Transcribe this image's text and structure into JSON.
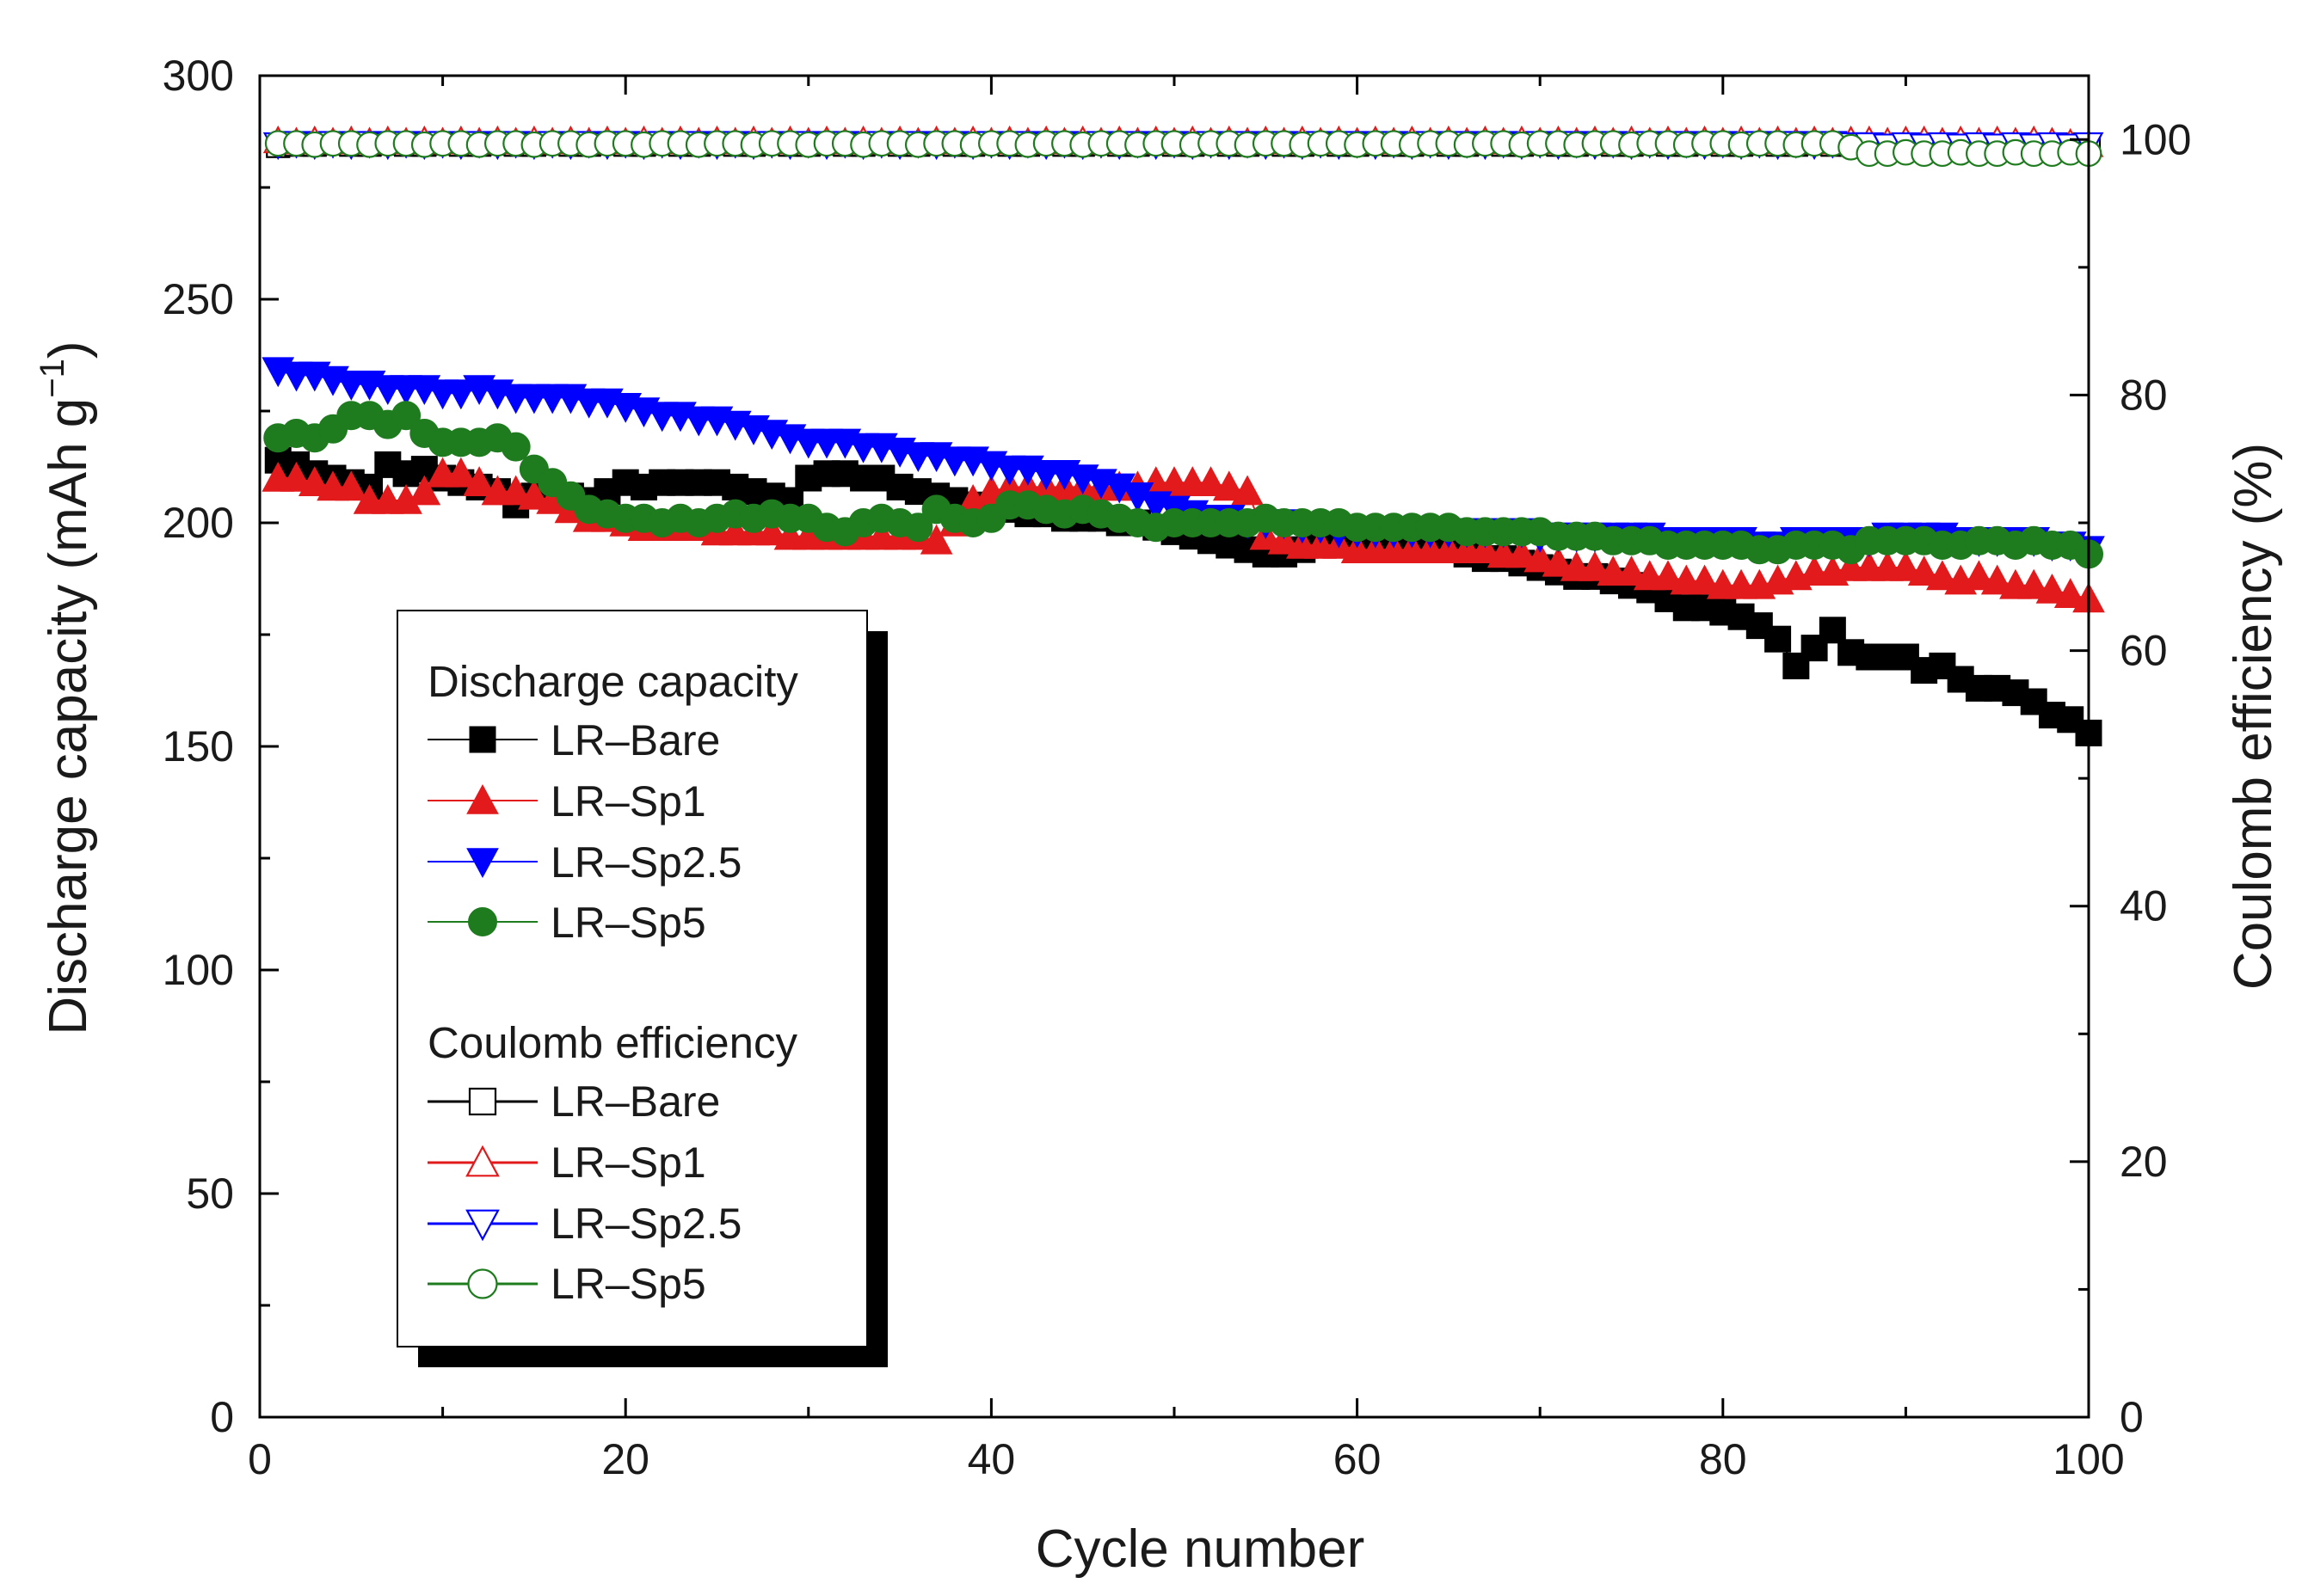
{
  "chart_data": {
    "type": "scatter",
    "title": "",
    "xlabel": "Cycle number",
    "ylabel_main": "Discharge capacity (mAh g",
    "ylabel_sup": "−1",
    "ylabel_close": ")",
    "y2label": "Coulomb efficiency (%)",
    "xlim": [
      0,
      100
    ],
    "ylim": [
      0,
      300
    ],
    "y2lim": [
      0,
      105
    ],
    "x_ticks": [
      "0",
      "20",
      "40",
      "60",
      "80",
      "100"
    ],
    "y_ticks": [
      "0",
      "50",
      "100",
      "150",
      "200",
      "250",
      "300"
    ],
    "y2_ticks": [
      "0",
      "20",
      "40",
      "60",
      "80",
      "100"
    ],
    "x": [
      1,
      2,
      3,
      4,
      5,
      6,
      7,
      8,
      9,
      10,
      11,
      12,
      13,
      14,
      15,
      16,
      17,
      18,
      19,
      20,
      21,
      22,
      23,
      24,
      25,
      26,
      27,
      28,
      29,
      30,
      31,
      32,
      33,
      34,
      35,
      36,
      37,
      38,
      39,
      40,
      41,
      42,
      43,
      44,
      45,
      46,
      47,
      48,
      49,
      50,
      51,
      52,
      53,
      54,
      55,
      56,
      57,
      58,
      59,
      60,
      61,
      62,
      63,
      64,
      65,
      66,
      67,
      68,
      69,
      70,
      71,
      72,
      73,
      74,
      75,
      76,
      77,
      78,
      79,
      80,
      81,
      82,
      83,
      84,
      85,
      86,
      87,
      88,
      89,
      90,
      91,
      92,
      93,
      94,
      95,
      96,
      97,
      98,
      99,
      100
    ],
    "discharge_series": [
      {
        "name": "LR–Bare",
        "color": "#000000",
        "marker": "square-filled",
        "values": [
          214,
          213,
          211,
          210,
          209,
          208,
          213,
          211,
          212,
          210,
          209,
          208,
          207,
          204,
          206,
          205,
          206,
          205,
          207,
          209,
          208,
          209,
          209,
          209,
          209,
          208,
          207,
          206,
          205,
          210,
          211,
          211,
          210,
          210,
          208,
          207,
          206,
          205,
          204,
          203,
          203,
          202,
          202,
          201,
          201,
          201,
          200,
          200,
          199,
          198,
          197,
          196,
          195,
          194,
          193,
          193,
          194,
          195,
          196,
          196,
          195,
          195,
          195,
          194,
          194,
          193,
          192,
          192,
          191,
          190,
          189,
          188,
          188,
          187,
          186,
          185,
          183,
          181,
          181,
          180,
          179,
          177,
          174,
          168,
          172,
          176,
          171,
          170,
          170,
          170,
          167,
          168,
          165,
          163,
          163,
          162,
          160,
          157,
          156,
          153
        ]
      },
      {
        "name": "LR–Sp1",
        "color": "#e31a1c",
        "marker": "triangle-up-filled",
        "values": [
          210,
          210,
          209,
          208,
          208,
          205,
          205,
          205,
          207,
          211,
          211,
          209,
          207,
          207,
          206,
          205,
          203,
          201,
          201,
          200,
          199,
          199,
          199,
          199,
          198,
          198,
          198,
          198,
          197,
          197,
          197,
          197,
          197,
          197,
          197,
          197,
          196,
          200,
          205,
          207,
          208,
          208,
          208,
          208,
          208,
          208,
          208,
          208,
          209,
          209,
          209,
          209,
          208,
          207,
          197,
          196,
          195,
          195,
          195,
          194,
          194,
          194,
          194,
          194,
          194,
          194,
          194,
          193,
          193,
          192,
          191,
          190,
          190,
          189,
          189,
          188,
          188,
          187,
          187,
          186,
          186,
          186,
          187,
          188,
          189,
          189,
          190,
          190,
          190,
          190,
          189,
          188,
          187,
          188,
          187,
          186,
          186,
          185,
          184,
          183
        ]
      },
      {
        "name": "LR–Sp2.5",
        "color": "#0000ff",
        "marker": "triangle-down-filled",
        "values": [
          234,
          233,
          233,
          232,
          231,
          231,
          230,
          230,
          230,
          229,
          229,
          230,
          229,
          228,
          228,
          228,
          228,
          227,
          227,
          226,
          225,
          224,
          224,
          223,
          223,
          222,
          221,
          220,
          219,
          218,
          218,
          218,
          217,
          217,
          216,
          215,
          215,
          214,
          214,
          213,
          212,
          212,
          211,
          211,
          210,
          209,
          208,
          206,
          204,
          203,
          202,
          201,
          201,
          200,
          200,
          200,
          199,
          199,
          198,
          198,
          198,
          198,
          198,
          198,
          198,
          198,
          198,
          198,
          198,
          197,
          197,
          197,
          197,
          197,
          197,
          197,
          196,
          196,
          196,
          196,
          196,
          195,
          195,
          196,
          196,
          196,
          196,
          196,
          197,
          197,
          197,
          197,
          196,
          196,
          196,
          196,
          196,
          195,
          195,
          194
        ]
      },
      {
        "name": "LR–Sp5",
        "color": "#1e7b1e",
        "marker": "circle-filled",
        "values": [
          219,
          220,
          219,
          221,
          224,
          224,
          222,
          224,
          220,
          218,
          218,
          218,
          219,
          217,
          212,
          209,
          206,
          203,
          202,
          201,
          201,
          200,
          201,
          200,
          201,
          202,
          201,
          202,
          201,
          201,
          199,
          198,
          200,
          201,
          200,
          199,
          203,
          201,
          200,
          201,
          204,
          204,
          203,
          202,
          203,
          202,
          201,
          200,
          199,
          200,
          200,
          200,
          200,
          200,
          201,
          200,
          200,
          200,
          200,
          199,
          199,
          199,
          199,
          199,
          199,
          198,
          198,
          198,
          198,
          198,
          197,
          197,
          197,
          196,
          196,
          196,
          195,
          195,
          195,
          195,
          195,
          194,
          194,
          195,
          195,
          195,
          194,
          196,
          196,
          196,
          196,
          195,
          195,
          196,
          196,
          195,
          196,
          195,
          195,
          193
        ]
      }
    ],
    "efficiency_series": [
      {
        "name": "LR–Bare",
        "color": "#000000",
        "marker": "square-open",
        "values": [
          99.5,
          99.6,
          99.6,
          99.7,
          99.6,
          99.6,
          99.7,
          99.6,
          99.6,
          99.7,
          99.6,
          99.6,
          99.7,
          99.6,
          99.6,
          99.7,
          99.6,
          99.6,
          99.7,
          99.6,
          99.6,
          99.7,
          99.6,
          99.6,
          99.7,
          99.6,
          99.6,
          99.7,
          99.6,
          99.6,
          99.7,
          99.6,
          99.6,
          99.7,
          99.6,
          99.6,
          99.7,
          99.6,
          99.6,
          99.7,
          99.6,
          99.6,
          99.7,
          99.6,
          99.6,
          99.7,
          99.6,
          99.6,
          99.7,
          99.6,
          99.6,
          99.7,
          99.6,
          99.6,
          99.7,
          99.6,
          99.6,
          99.7,
          99.6,
          99.6,
          99.7,
          99.6,
          99.6,
          99.7,
          99.6,
          99.6,
          99.7,
          99.6,
          99.6,
          99.7,
          99.6,
          99.6,
          99.7,
          99.6,
          99.6,
          99.7,
          99.6,
          99.6,
          99.7,
          99.6,
          99.6,
          99.7,
          99.6,
          99.6,
          99.7,
          99.6,
          99.6,
          99.5,
          99.5,
          99.5,
          99.4,
          99.5,
          99.5,
          99.4,
          99.5,
          99.5,
          99.4,
          99.5,
          99.6,
          99.5
        ]
      },
      {
        "name": "LR–Sp1",
        "color": "#e31a1c",
        "marker": "triangle-up-open",
        "values": [
          99.9,
          99.8,
          99.9,
          99.8,
          99.9,
          99.8,
          99.9,
          99.8,
          99.9,
          99.8,
          99.9,
          99.8,
          99.9,
          99.8,
          99.9,
          99.8,
          99.9,
          99.8,
          99.9,
          99.8,
          99.9,
          99.8,
          99.9,
          99.8,
          99.9,
          99.8,
          99.9,
          99.8,
          99.9,
          99.8,
          99.9,
          99.8,
          99.9,
          99.8,
          99.9,
          99.8,
          99.9,
          99.8,
          99.9,
          99.8,
          99.9,
          99.8,
          99.9,
          99.8,
          99.9,
          99.8,
          99.9,
          99.8,
          99.9,
          99.8,
          99.9,
          99.8,
          99.9,
          99.8,
          99.9,
          99.8,
          99.9,
          99.8,
          99.9,
          99.8,
          99.9,
          99.8,
          99.9,
          99.8,
          99.9,
          99.8,
          99.9,
          99.8,
          99.9,
          99.8,
          99.9,
          99.8,
          99.9,
          99.8,
          99.9,
          99.8,
          99.9,
          99.8,
          99.9,
          99.8,
          99.9,
          99.8,
          99.9,
          99.8,
          99.9,
          99.8,
          99.9,
          99.9,
          99.8,
          99.9,
          99.9,
          99.8,
          99.9,
          99.8,
          99.9,
          99.8,
          99.9,
          99.8,
          99.7,
          99.6
        ]
      },
      {
        "name": "LR–Sp2.5",
        "color": "#0000ff",
        "marker": "triangle-down-open",
        "values": [
          99.6,
          99.7,
          99.6,
          99.7,
          99.6,
          99.7,
          99.6,
          99.7,
          99.6,
          99.7,
          99.6,
          99.7,
          99.6,
          99.7,
          99.6,
          99.7,
          99.6,
          99.7,
          99.6,
          99.7,
          99.6,
          99.7,
          99.6,
          99.7,
          99.6,
          99.7,
          99.6,
          99.7,
          99.6,
          99.7,
          99.6,
          99.7,
          99.6,
          99.7,
          99.6,
          99.7,
          99.6,
          99.7,
          99.6,
          99.7,
          99.6,
          99.7,
          99.6,
          99.7,
          99.6,
          99.7,
          99.6,
          99.7,
          99.6,
          99.7,
          99.6,
          99.7,
          99.6,
          99.7,
          99.6,
          99.7,
          99.6,
          99.7,
          99.6,
          99.7,
          99.6,
          99.7,
          99.6,
          99.7,
          99.6,
          99.7,
          99.6,
          99.7,
          99.6,
          99.7,
          99.6,
          99.7,
          99.6,
          99.7,
          99.6,
          99.7,
          99.6,
          99.7,
          99.6,
          99.7,
          99.6,
          99.7,
          99.6,
          99.7,
          99.6,
          99.7,
          99.6,
          99.6,
          99.5,
          99.6,
          99.5,
          99.6,
          99.5,
          99.6,
          99.5,
          99.6,
          99.5,
          99.6,
          99.5,
          99.6
        ]
      },
      {
        "name": "LR–Sp5",
        "color": "#1e7b1e",
        "marker": "circle-open",
        "values": [
          99.7,
          99.7,
          99.6,
          99.7,
          99.7,
          99.6,
          99.7,
          99.7,
          99.6,
          99.7,
          99.7,
          99.6,
          99.7,
          99.7,
          99.6,
          99.7,
          99.7,
          99.6,
          99.7,
          99.7,
          99.6,
          99.7,
          99.7,
          99.6,
          99.7,
          99.7,
          99.6,
          99.7,
          99.7,
          99.6,
          99.7,
          99.7,
          99.6,
          99.7,
          99.7,
          99.6,
          99.7,
          99.7,
          99.6,
          99.7,
          99.7,
          99.6,
          99.7,
          99.7,
          99.6,
          99.7,
          99.7,
          99.6,
          99.7,
          99.7,
          99.6,
          99.7,
          99.7,
          99.6,
          99.7,
          99.7,
          99.6,
          99.7,
          99.7,
          99.6,
          99.7,
          99.7,
          99.6,
          99.7,
          99.7,
          99.6,
          99.7,
          99.7,
          99.6,
          99.7,
          99.7,
          99.6,
          99.7,
          99.7,
          99.6,
          99.7,
          99.7,
          99.6,
          99.7,
          99.7,
          99.6,
          99.7,
          99.7,
          99.6,
          99.7,
          99.7,
          99.4,
          98.9,
          98.9,
          99.0,
          98.9,
          98.9,
          99.0,
          98.9,
          98.9,
          99.0,
          98.9,
          98.9,
          99.0,
          98.9
        ]
      }
    ],
    "legend": {
      "location": "lower-left",
      "discharge_heading": "Discharge capacity",
      "efficiency_heading": "Coulomb efficiency",
      "discharge_labels": [
        "LR–Bare",
        "LR–Sp1",
        "LR–Sp2.5",
        "LR–Sp5"
      ],
      "efficiency_labels": [
        "LR–Bare",
        "LR–Sp1",
        "LR–Sp2.5",
        "LR–Sp5"
      ]
    }
  }
}
